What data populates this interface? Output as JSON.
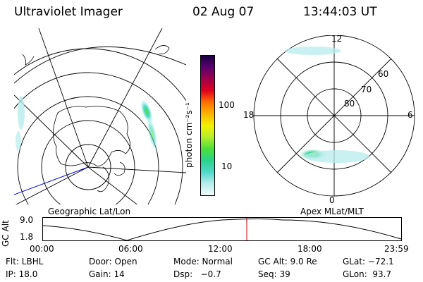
{
  "header": {
    "instrument": "Ultraviolet Imager",
    "date": "02 Aug 07",
    "time": "13:44:03 UT"
  },
  "left_panel": {
    "caption": "Geographic Lat/Lon"
  },
  "right_panel": {
    "caption": "Apex MLat/MLT",
    "mlt_labels": {
      "top": "12",
      "bottom": "0",
      "left": "18",
      "right": "6"
    },
    "mlat_labels": [
      "60",
      "70",
      "80"
    ]
  },
  "colorbar": {
    "unit_label": "photon cm⁻²s⁻¹",
    "tick_labels": [
      "100",
      "10"
    ]
  },
  "altitude_timeline": {
    "axis_label": "GC Alt",
    "y_ticks": [
      "9.0",
      "1.8"
    ],
    "x_ticks": [
      "00:00",
      "06:00",
      "12:00",
      "18:00",
      "23:59"
    ],
    "marker_time": "13:44"
  },
  "info": {
    "row1": {
      "filter": "Flt: LBHL",
      "door": "Door: Open",
      "mode": "Mode: Normal",
      "gc_alt": "GC Alt: 9.0 Re",
      "glat": "GLat: −72.1"
    },
    "row2": {
      "ip": "IP: 18.0",
      "gain": "Gain: 14",
      "dsp": "Dsp:   −0.7",
      "seq": "Seq: 39",
      "glon": "GLon:  93.7"
    }
  },
  "colors": {
    "ink": "#000000",
    "coast_line": "#0000cc",
    "marker": "#cc0000",
    "colorbar": [
      "#f2fbfb",
      "#b8ecec",
      "#4fd9c9",
      "#2ad28c",
      "#4ce03a",
      "#b5ed2b",
      "#f2f200",
      "#fbb400",
      "#ff6e00",
      "#e10020",
      "#a0004a",
      "#5a0070",
      "#1c0040"
    ]
  }
}
